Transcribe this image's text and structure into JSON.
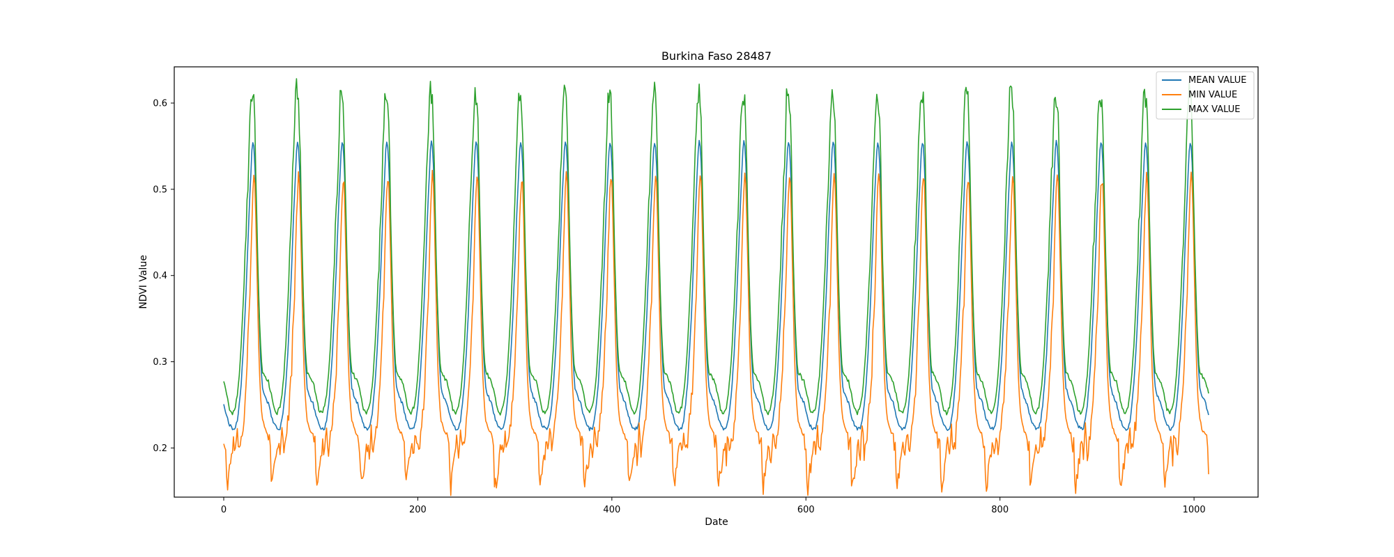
{
  "chart_data": {
    "type": "line",
    "title": "Burkina Faso 28487",
    "xlabel": "Date",
    "ylabel": "NDVI Value",
    "xlim": [
      -51,
      1066
    ],
    "ylim": [
      0.143,
      0.642
    ],
    "xticks": [
      0,
      200,
      400,
      600,
      800,
      1000
    ],
    "yticks": [
      0.2,
      0.3,
      0.4,
      0.5,
      0.6
    ],
    "ytick_labels": [
      "0.2",
      "0.3",
      "0.4",
      "0.5",
      "0.6"
    ],
    "grid": false,
    "legend_position": "top-right",
    "period": 46,
    "n_points": 1016,
    "cycle_start_offset": 0,
    "series": [
      {
        "name": "MEAN VALUE",
        "color": "#1f77b4",
        "cycle_profile": [
          [
            0,
            0.252
          ],
          [
            3,
            0.237
          ],
          [
            6,
            0.227
          ],
          [
            9,
            0.222
          ],
          [
            12,
            0.223
          ],
          [
            14,
            0.232
          ],
          [
            16,
            0.25
          ],
          [
            18,
            0.275
          ],
          [
            20,
            0.31
          ],
          [
            22,
            0.355
          ],
          [
            24,
            0.41
          ],
          [
            26,
            0.47
          ],
          [
            28,
            0.52
          ],
          [
            29,
            0.545
          ],
          [
            30,
            0.555
          ],
          [
            31,
            0.55
          ],
          [
            32,
            0.53
          ],
          [
            33,
            0.5
          ],
          [
            34,
            0.455
          ],
          [
            35,
            0.41
          ],
          [
            36,
            0.37
          ],
          [
            37,
            0.335
          ],
          [
            38,
            0.305
          ],
          [
            39,
            0.285
          ],
          [
            40,
            0.27
          ],
          [
            42,
            0.262
          ],
          [
            44,
            0.256
          ],
          [
            46,
            0.252
          ]
        ]
      },
      {
        "name": "MIN VALUE",
        "color": "#ff7f0e",
        "cycle_profile": [
          [
            0,
            0.218
          ],
          [
            2,
            0.214
          ],
          [
            3,
            0.175
          ],
          [
            4,
            0.165
          ],
          [
            6,
            0.182
          ],
          [
            8,
            0.196
          ],
          [
            10,
            0.215
          ],
          [
            12,
            0.2
          ],
          [
            14,
            0.23
          ],
          [
            16,
            0.205
          ],
          [
            18,
            0.22
          ],
          [
            20,
            0.24
          ],
          [
            22,
            0.265
          ],
          [
            24,
            0.3
          ],
          [
            25,
            0.34
          ],
          [
            27,
            0.38
          ],
          [
            28,
            0.43
          ],
          [
            29,
            0.47
          ],
          [
            30,
            0.505
          ],
          [
            31,
            0.522
          ],
          [
            32,
            0.51
          ],
          [
            33,
            0.47
          ],
          [
            34,
            0.42
          ],
          [
            35,
            0.37
          ],
          [
            36,
            0.32
          ],
          [
            37,
            0.285
          ],
          [
            38,
            0.262
          ],
          [
            39,
            0.245
          ],
          [
            40,
            0.235
          ],
          [
            42,
            0.225
          ],
          [
            44,
            0.22
          ],
          [
            46,
            0.218
          ]
        ]
      },
      {
        "name": "MAX VALUE",
        "color": "#2ca02c",
        "cycle_profile": [
          [
            0,
            0.277
          ],
          [
            3,
            0.262
          ],
          [
            6,
            0.245
          ],
          [
            9,
            0.24
          ],
          [
            12,
            0.248
          ],
          [
            14,
            0.262
          ],
          [
            16,
            0.285
          ],
          [
            18,
            0.32
          ],
          [
            20,
            0.365
          ],
          [
            22,
            0.42
          ],
          [
            24,
            0.48
          ],
          [
            25,
            0.51
          ],
          [
            26,
            0.54
          ],
          [
            27,
            0.575
          ],
          [
            28,
            0.605
          ],
          [
            29,
            0.615
          ],
          [
            30,
            0.61
          ],
          [
            31,
            0.6
          ],
          [
            32,
            0.575
          ],
          [
            33,
            0.53
          ],
          [
            34,
            0.47
          ],
          [
            35,
            0.42
          ],
          [
            36,
            0.38
          ],
          [
            37,
            0.345
          ],
          [
            38,
            0.318
          ],
          [
            39,
            0.298
          ],
          [
            40,
            0.288
          ],
          [
            42,
            0.285
          ],
          [
            44,
            0.28
          ],
          [
            46,
            0.277
          ]
        ]
      }
    ]
  }
}
